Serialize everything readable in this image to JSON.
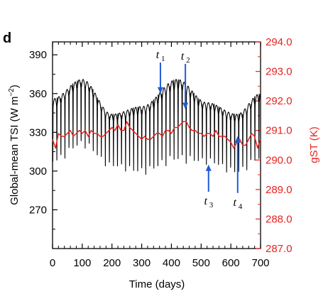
{
  "panel_label": "d",
  "colors": {
    "tsi": "#000000",
    "gst": "#e8231f",
    "arrow": "#1e5bd6",
    "right_axis": "#e8231f"
  },
  "chart_data": {
    "type": "line",
    "xlabel": "Time (days)",
    "ylabel_left": "Global-mean TSI (W m",
    "ylabel_left_sup": "−2",
    "ylabel_left_end": ")",
    "ylabel_right": "gST (K)",
    "xlim": [
      0,
      700
    ],
    "ylim_left": [
      240,
      400
    ],
    "ylim_right": [
      287.0,
      294.0
    ],
    "x_ticks": [
      0,
      100,
      200,
      300,
      400,
      500,
      600,
      700
    ],
    "y_ticks_left": [
      270,
      300,
      330,
      360,
      390
    ],
    "y_ticks_right": [
      "287.0",
      "288.0",
      "289.0",
      "290.0",
      "291.0",
      "292.0",
      "293.0",
      "294.0"
    ],
    "series": [
      {
        "axis": "left",
        "color": "#000000",
        "cycle_days": 13.6,
        "upper_envelope": [
          [
            0,
            356
          ],
          [
            100,
            371
          ],
          [
            200,
            344
          ],
          [
            300,
            350
          ],
          [
            420,
            371
          ],
          [
            520,
            353
          ],
          [
            620,
            344
          ],
          [
            700,
            360
          ]
        ],
        "lower_envelope": [
          [
            0,
            305
          ],
          [
            100,
            318
          ],
          [
            200,
            302
          ],
          [
            300,
            297
          ],
          [
            420,
            306
          ],
          [
            520,
            305
          ],
          [
            620,
            297
          ],
          [
            700,
            307
          ]
        ]
      },
      {
        "axis": "right",
        "color": "#e8231f",
        "points": [
          [
            0,
            290.7
          ],
          [
            10,
            290.4
          ],
          [
            20,
            290.9
          ],
          [
            30,
            290.8
          ],
          [
            40,
            290.8
          ],
          [
            50,
            290.9
          ],
          [
            60,
            291.0
          ],
          [
            70,
            290.8
          ],
          [
            80,
            290.9
          ],
          [
            90,
            291.0
          ],
          [
            100,
            290.9
          ],
          [
            110,
            291.0
          ],
          [
            120,
            290.8
          ],
          [
            130,
            291.0
          ],
          [
            140,
            290.9
          ],
          [
            150,
            290.9
          ],
          [
            160,
            290.8
          ],
          [
            170,
            290.8
          ],
          [
            180,
            290.9
          ],
          [
            190,
            291.0
          ],
          [
            200,
            291.1
          ],
          [
            210,
            291.0
          ],
          [
            220,
            291.2
          ],
          [
            230,
            291.0
          ],
          [
            240,
            291.0
          ],
          [
            250,
            291.3
          ],
          [
            260,
            291.1
          ],
          [
            270,
            291.0
          ],
          [
            280,
            290.9
          ],
          [
            290,
            290.8
          ],
          [
            300,
            290.7
          ],
          [
            310,
            290.8
          ],
          [
            320,
            290.7
          ],
          [
            330,
            290.7
          ],
          [
            340,
            290.8
          ],
          [
            350,
            290.9
          ],
          [
            360,
            290.9
          ],
          [
            370,
            290.8
          ],
          [
            380,
            291.0
          ],
          [
            390,
            291.0
          ],
          [
            400,
            290.9
          ],
          [
            410,
            291.1
          ],
          [
            420,
            291.1
          ],
          [
            430,
            291.2
          ],
          [
            440,
            291.3
          ],
          [
            450,
            291.3
          ],
          [
            460,
            291.1
          ],
          [
            470,
            291.0
          ],
          [
            480,
            291.0
          ],
          [
            490,
            290.9
          ],
          [
            500,
            290.9
          ],
          [
            510,
            290.8
          ],
          [
            520,
            290.9
          ],
          [
            530,
            290.9
          ],
          [
            540,
            290.8
          ],
          [
            550,
            291.0
          ],
          [
            560,
            290.8
          ],
          [
            570,
            290.8
          ],
          [
            580,
            290.8
          ],
          [
            590,
            290.7
          ],
          [
            600,
            290.6
          ],
          [
            610,
            290.4
          ],
          [
            620,
            290.6
          ],
          [
            630,
            290.7
          ],
          [
            640,
            290.5
          ],
          [
            650,
            290.5
          ],
          [
            660,
            290.7
          ],
          [
            670,
            290.9
          ],
          [
            680,
            290.8
          ],
          [
            690,
            290.4
          ],
          [
            700,
            290.7
          ]
        ]
      }
    ],
    "annotations": [
      {
        "label": "t",
        "sub": "1",
        "x": 363,
        "tip_left": 360,
        "tail_left": 384,
        "direction": "down"
      },
      {
        "label": "t",
        "sub": "2",
        "x": 447,
        "tip_left": 348,
        "tail_left": 383,
        "direction": "down"
      },
      {
        "label": "t",
        "sub": "3",
        "x": 525,
        "tip_left": 305,
        "tail_left": 284,
        "direction": "up"
      },
      {
        "label": "t",
        "sub": "4",
        "x": 623,
        "tip_left": 327,
        "tail_left": 283,
        "direction": "up"
      }
    ]
  }
}
